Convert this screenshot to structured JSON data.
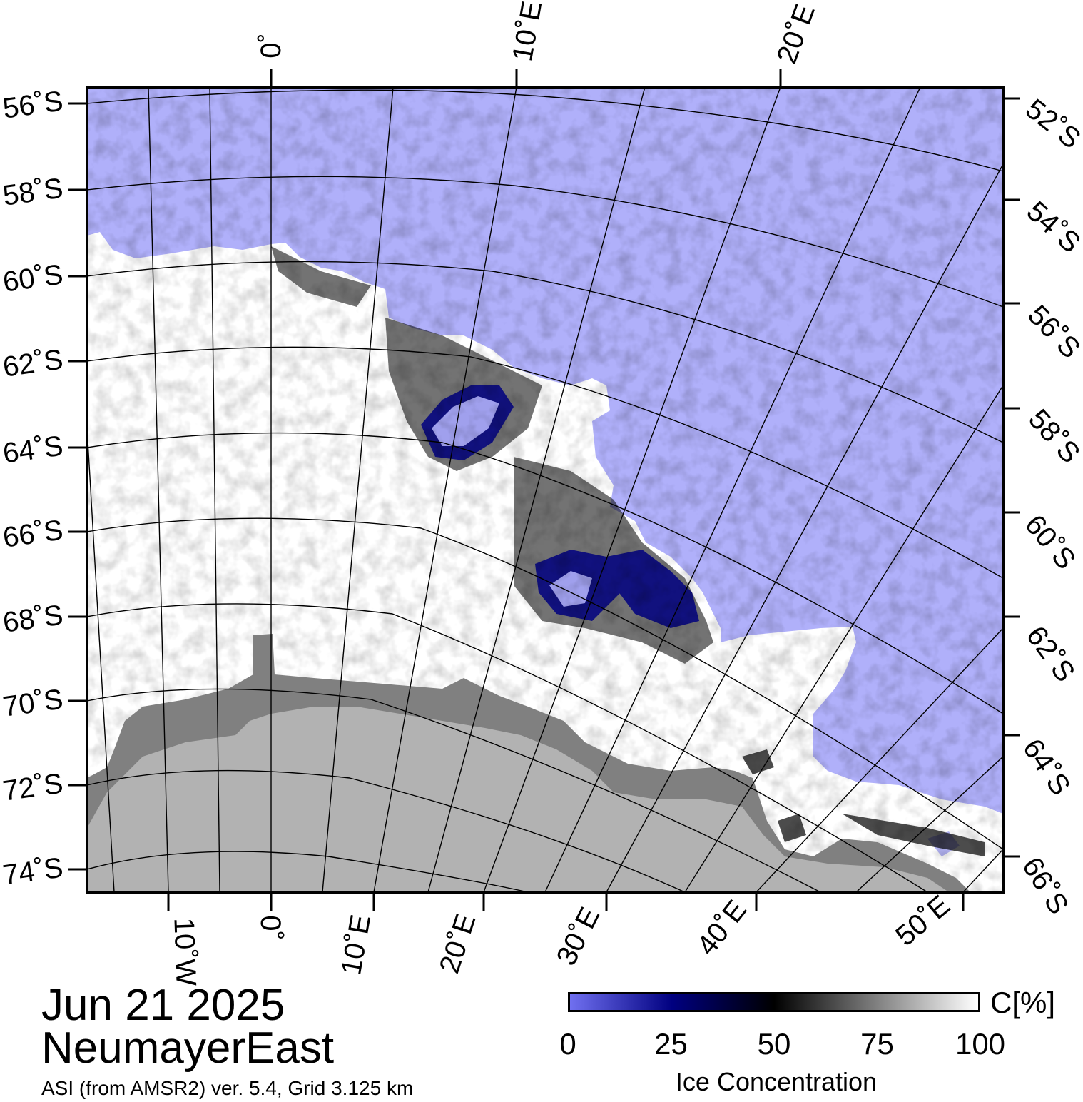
{
  "date": "Jun 21 2025",
  "region": "NeumayerEast",
  "source": "ASI (from AMSR2) ver. 5.4,  Grid 3.125 km",
  "colors": {
    "open_water": "#b0b0fa",
    "ice_high": "#ffffff",
    "ice_mid": "#000000",
    "ice_low": "#000080",
    "land": "#b2b2b2",
    "ice_shelf": "#808080",
    "graticule": "#000000"
  },
  "lat_labels_left": [
    "56˚S",
    "58˚S",
    "60˚S",
    "62˚S",
    "64˚S",
    "66˚S",
    "68˚S",
    "70˚S",
    "72˚S",
    "74˚S"
  ],
  "lat_labels_right": [
    "52˚S",
    "54˚S",
    "56˚S",
    "58˚S",
    "60˚S",
    "62˚S",
    "64˚S",
    "66˚S"
  ],
  "lon_labels_top": [
    "0˚",
    "10˚E",
    "20˚E"
  ],
  "lon_labels_bottom": [
    "10˚W",
    "0˚",
    "10˚E",
    "20˚E",
    "30˚E",
    "40˚E",
    "50˚E"
  ],
  "colorbar": {
    "unit": "C[%]",
    "ticks": [
      "0",
      "25",
      "50",
      "75",
      "100"
    ],
    "tick_values": [
      0,
      25,
      50,
      75,
      100
    ],
    "title": "Ice Concentration",
    "gradient": [
      "#7070f0",
      "#000080",
      "#000000",
      "#ffffff"
    ]
  }
}
